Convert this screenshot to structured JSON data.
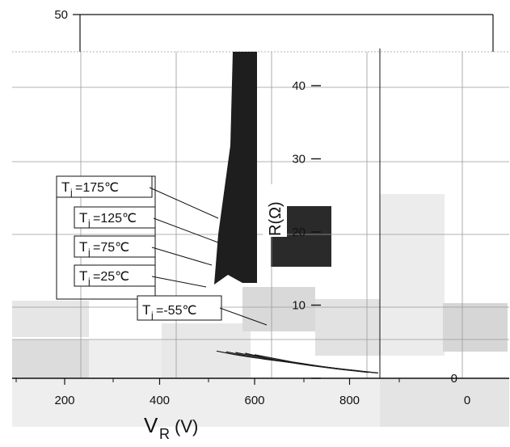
{
  "chart_data": {
    "type": "line",
    "xlabel_main": "V",
    "xlabel_sub": "R",
    "xlabel_unit": "(V)",
    "ylabel": "R(Ω)",
    "x_ticks": [
      200,
      400,
      600,
      800
    ],
    "y_ticks_right": [
      0,
      10,
      20,
      30,
      40
    ],
    "y_tick_top_left": "50",
    "x_tick_right": "0",
    "xlim": [
      60,
      860
    ],
    "ylim": [
      0,
      50
    ],
    "grid": true,
    "legend_position": "left",
    "annotations": [
      {
        "label_main": "T",
        "label_sub": "j",
        "label_value": "=175℃"
      },
      {
        "label_main": "T",
        "label_sub": "j",
        "label_value": "=125℃"
      },
      {
        "label_main": "T",
        "label_sub": "j",
        "label_value": "=75℃"
      },
      {
        "label_main": "T",
        "label_sub": "j",
        "label_value": "=25℃"
      },
      {
        "label_main": "T",
        "label_sub": "j",
        "label_value": "=-55℃"
      }
    ],
    "series": [
      {
        "name": "Tj=175℃",
        "x": [
          520,
          560,
          600,
          650,
          700,
          760,
          820
        ],
        "y": [
          3.5,
          3.0,
          2.6,
          2.2,
          1.7,
          1.2,
          0.8
        ]
      },
      {
        "name": "Tj=125℃",
        "x": [
          540,
          580,
          620,
          680,
          740,
          800,
          840
        ],
        "y": [
          3.4,
          2.9,
          2.4,
          1.9,
          1.4,
          0.9,
          0.6
        ]
      },
      {
        "name": "Tj=75℃",
        "x": [
          560,
          600,
          640,
          700,
          760,
          820,
          860
        ],
        "y": [
          3.3,
          2.8,
          2.3,
          1.8,
          1.2,
          0.8,
          0.5
        ]
      },
      {
        "name": "Tj=25℃",
        "x": [
          580,
          620,
          660,
          720,
          780,
          840
        ],
        "y": [
          3.2,
          2.6,
          2.1,
          1.5,
          1.0,
          0.6
        ]
      },
      {
        "name": "Tj=-55℃",
        "x": [
          600,
          640,
          680,
          740,
          800,
          860
        ],
        "y": [
          3.0,
          2.5,
          2.0,
          1.4,
          0.9,
          0.5
        ]
      }
    ],
    "colors": {
      "axis": "#111111",
      "grid": "#9a9a9a",
      "series": "#1a1a1a",
      "dark_band": "#1e1e1e",
      "gray_block": "#cfcfcf"
    }
  }
}
